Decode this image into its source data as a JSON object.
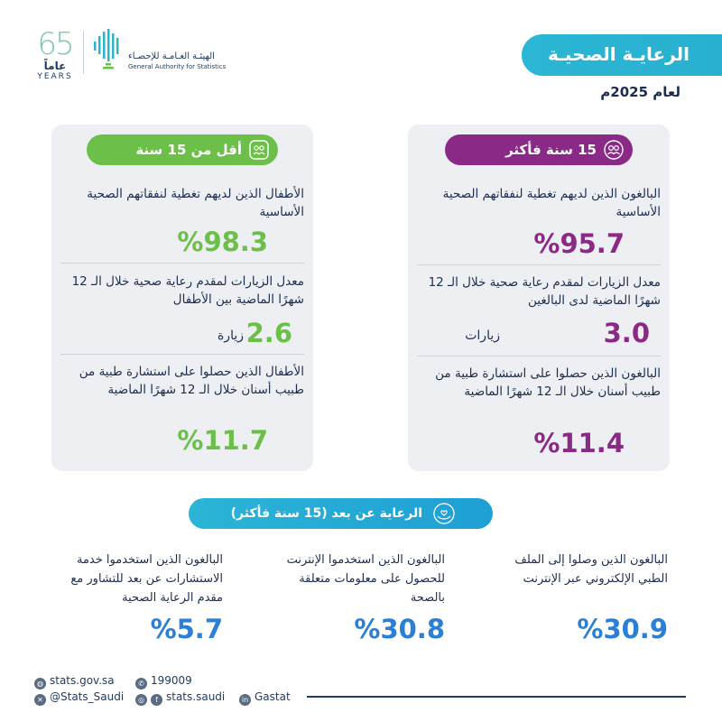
{
  "header": {
    "logo_number": "65",
    "logo_arabic": "عاماً",
    "logo_english": "YEARS",
    "authority_ar": "الهيئـة العـامـة للإحصـاء",
    "authority_en": "General Authority for Statistics",
    "title": "الرعايـة الصحيـة",
    "year": "لعام 2025م"
  },
  "adults": {
    "badge": "15 سنة فأكثر",
    "stats": [
      {
        "label": "البالغون الذين لديهم تغطية لنفقاتهم الصحية الأساسية",
        "value": "%95.7"
      },
      {
        "label": "معدل الزيارات لمقدم رعاية صحية خلال الـ 12 شهرًا الماضية لدى البالغين",
        "value": "3.0",
        "unit": "زيارات"
      },
      {
        "label": "البالغون الذين حصلوا على استشارة طبية من طبيب أسنان خلال الـ 12 شهرًا الماضية",
        "value": "%11.4"
      }
    ]
  },
  "children": {
    "badge": "أقل من 15 سنة",
    "stats": [
      {
        "label": "الأطفال الذين لديهم تغطية لنفقاتهم الصحية الأساسية",
        "value": "%98.3"
      },
      {
        "label": "معدل الزيارات لمقدم رعاية صحية خلال الـ 12 شهرًا الماضية بين الأطفال",
        "value": "2.6",
        "unit": "زيارة"
      },
      {
        "label": "الأطفال الذين حصلوا على استشارة طبية من طبيب أسنان خلال الـ 12 شهرًا الماضية",
        "value": "%11.7"
      }
    ]
  },
  "remote": {
    "title": "الرعاية عن بعد (15 سنة فأكثر)",
    "stats": [
      {
        "label": "البالغون الذين وصلوا إلى الملف الطبي الإلكتروني عبر الإنترنت",
        "value": "%30.9"
      },
      {
        "label": "البالغون الذين استخدموا الإنترنت للحصول على معلومات متعلقة بالصحة",
        "value": "%30.8"
      },
      {
        "label": "البالغون الذين استخدموا خدمة الاستشارات عن بعد للتشاور مع مقدم الرعاية الصحية",
        "value": "%5.7"
      }
    ]
  },
  "footer": {
    "website": "stats.gov.sa",
    "phone": "199009",
    "x_handle": "@Stats_Saudi",
    "social": "stats.saudi",
    "linkedin": "Gastat"
  },
  "colors": {
    "purple": "#8a2a86",
    "green": "#6cc04a",
    "blue": "#2b7fd4",
    "cyan": "#2ab6d4"
  },
  "icons": [
    "adults-icon",
    "children-icon",
    "care-hands-icon",
    "globe-icon",
    "phone-icon",
    "x-icon",
    "instagram-icon",
    "facebook-icon",
    "linkedin-icon"
  ]
}
